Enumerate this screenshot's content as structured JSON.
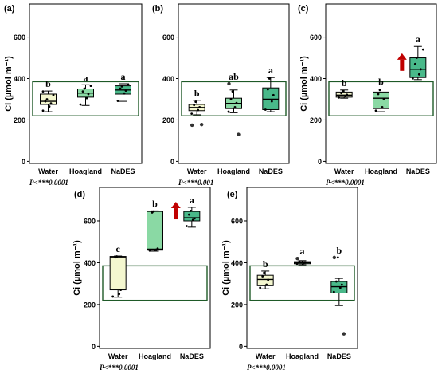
{
  "chart_data": [
    {
      "type": "box",
      "panel_label": "(a)",
      "ylabel": "Ci (µmol m⁻¹)",
      "yticks": [
        "0",
        "200",
        "400",
        "600"
      ],
      "ylim": [
        -10,
        760
      ],
      "categories": [
        "Water",
        "Hoagland",
        "NaDES"
      ],
      "colors": [
        "#f4f7cf",
        "#8ad9a4",
        "#49b98a"
      ],
      "boxes": [
        {
          "q1": 275,
          "median": 290,
          "q3": 325,
          "whisker_low": 240,
          "whisker_high": 340,
          "letter": "b",
          "points": [
            245,
            265,
            280,
            290,
            300,
            320,
            338
          ],
          "outliers": []
        },
        {
          "q1": 310,
          "median": 330,
          "q3": 350,
          "whisker_low": 270,
          "whisker_high": 370,
          "letter": "a",
          "points": [
            275,
            305,
            325,
            338,
            352,
            365
          ],
          "outliers": []
        },
        {
          "q1": 325,
          "median": 345,
          "q3": 365,
          "whisker_low": 290,
          "whisker_high": 375,
          "letter": "a",
          "points": [
            292,
            328,
            342,
            352,
            362,
            372
          ],
          "outliers": []
        }
      ],
      "reference_rect": [
        220,
        385
      ],
      "arrow": false,
      "pvalue": "P<***0.0001"
    },
    {
      "type": "box",
      "panel_label": "(b)",
      "ylabel": "",
      "yticks": [
        "0",
        "200",
        "400",
        "600"
      ],
      "ylim": [
        -10,
        760
      ],
      "categories": [
        "Water",
        "Hoagland",
        "NaDES"
      ],
      "colors": [
        "#f4f7cf",
        "#8ad9a4",
        "#49b98a"
      ],
      "boxes": [
        {
          "q1": 245,
          "median": 260,
          "q3": 275,
          "whisker_low": 225,
          "whisker_high": 295,
          "letter": "b",
          "points": [
            230,
            248,
            262,
            272,
            288
          ],
          "outliers": [
            175,
            178
          ]
        },
        {
          "q1": 255,
          "median": 280,
          "q3": 305,
          "whisker_low": 235,
          "whisker_high": 345,
          "letter": "ab",
          "points": [
            240,
            262,
            282,
            300,
            338
          ],
          "outliers": [
            375,
            130
          ]
        },
        {
          "q1": 250,
          "median": 300,
          "q3": 355,
          "whisker_low": 240,
          "whisker_high": 405,
          "letter": "a",
          "points": [
            250,
            290,
            320,
            348,
            400
          ],
          "outliers": []
        }
      ],
      "reference_rect": [
        220,
        385
      ],
      "arrow": false,
      "pvalue": "P<***0.001"
    },
    {
      "type": "box",
      "panel_label": "(c)",
      "ylabel": "Ci (µmol m⁻¹)",
      "yticks": [
        "0",
        "200",
        "400",
        "600"
      ],
      "ylim": [
        -10,
        760
      ],
      "categories": [
        "Water",
        "Hoagland",
        "NaDES"
      ],
      "colors": [
        "#f4f7cf",
        "#8ad9a4",
        "#49b98a"
      ],
      "boxes": [
        {
          "q1": 310,
          "median": 320,
          "q3": 335,
          "whisker_low": 305,
          "whisker_high": 345,
          "letter": "b",
          "points": [
            308,
            315,
            322,
            330,
            340
          ],
          "outliers": []
        },
        {
          "q1": 255,
          "median": 305,
          "q3": 335,
          "whisker_low": 240,
          "whisker_high": 350,
          "letter": "b",
          "points": [
            245,
            262,
            300,
            325,
            345
          ],
          "outliers": []
        },
        {
          "q1": 405,
          "median": 445,
          "q3": 500,
          "whisker_low": 395,
          "whisker_high": 555,
          "letter": "a",
          "points": [
            400,
            420,
            445,
            470,
            500,
            540
          ],
          "outliers": []
        }
      ],
      "reference_rect": [
        220,
        385
      ],
      "arrow": true,
      "pvalue": "P<***0.0001"
    },
    {
      "type": "box",
      "panel_label": "(d)",
      "ylabel": "Ci (µmol m⁻¹)",
      "yticks": [
        "0",
        "200",
        "400",
        "600"
      ],
      "ylim": [
        -10,
        760
      ],
      "categories": [
        "Water",
        "Hoagland",
        "NaDES"
      ],
      "colors": [
        "#f4f7cf",
        "#8ad9a4",
        "#49b98a"
      ],
      "boxes": [
        {
          "q1": 270,
          "median": 425,
          "q3": 430,
          "whisker_low": 235,
          "whisker_high": 432,
          "letter": "c",
          "points": [
            238,
            250,
            270,
            425,
            430
          ],
          "outliers": []
        },
        {
          "q1": 460,
          "median": 465,
          "q3": 645,
          "whisker_low": 455,
          "whisker_high": 648,
          "letter": "b",
          "points": [
            458,
            462,
            468,
            640,
            645
          ],
          "outliers": []
        },
        {
          "q1": 600,
          "median": 615,
          "q3": 645,
          "whisker_low": 570,
          "whisker_high": 665,
          "letter": "a",
          "points": [
            575,
            605,
            612,
            630,
            648
          ],
          "outliers": []
        }
      ],
      "reference_rect": [
        220,
        385
      ],
      "arrow": true,
      "pvalue": "P<***0.0001"
    },
    {
      "type": "box",
      "panel_label": "(e)",
      "ylabel": "Ci (µmol m⁻¹)",
      "yticks": [
        "0",
        "200",
        "400",
        "600"
      ],
      "ylim": [
        -10,
        760
      ],
      "categories": [
        "Water",
        "Hoagland",
        "NaDES"
      ],
      "colors": [
        "#f4f7cf",
        "#8ad9a4",
        "#49b98a"
      ],
      "boxes": [
        {
          "q1": 290,
          "median": 320,
          "q3": 340,
          "whisker_low": 275,
          "whisker_high": 360,
          "letter": "b",
          "points": [
            280,
            295,
            318,
            335,
            352
          ],
          "outliers": []
        },
        {
          "q1": 395,
          "median": 400,
          "q3": 405,
          "whisker_low": 390,
          "whisker_high": 410,
          "letter": "a",
          "points": [
            395,
            398,
            402,
            405
          ],
          "outliers": [
            420
          ]
        },
        {
          "q1": 255,
          "median": 285,
          "q3": 310,
          "whisker_low": 195,
          "whisker_high": 325,
          "letter": "b",
          "points": [
            260,
            280,
            295,
            310,
            425
          ],
          "outliers": [
            425,
            60
          ]
        }
      ],
      "reference_rect": [
        220,
        385
      ],
      "arrow": false,
      "pvalue": "P<***0.0001"
    }
  ]
}
